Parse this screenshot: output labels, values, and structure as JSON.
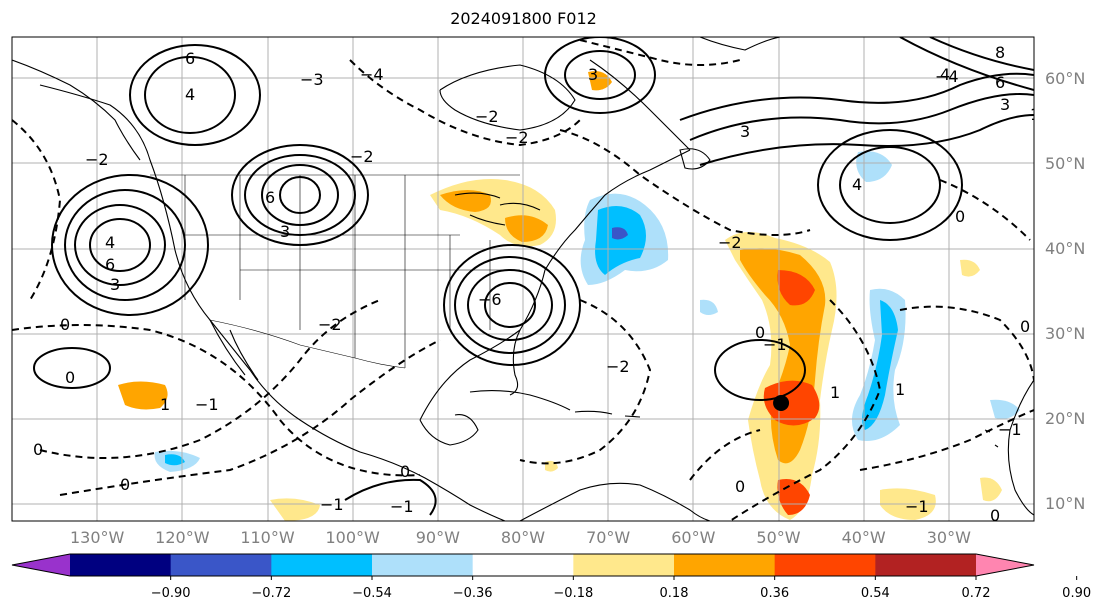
{
  "title": "2024091800 F012",
  "lat_labels": [
    {
      "text": "60°N",
      "lat": 60
    },
    {
      "text": "50°N",
      "lat": 50
    },
    {
      "text": "40°N",
      "lat": 40
    },
    {
      "text": "30°N",
      "lat": 30
    },
    {
      "text": "20°N",
      "lat": 20
    },
    {
      "text": "10°N",
      "lat": 10
    }
  ],
  "lon_labels": [
    {
      "text": "130°W",
      "lon": -130
    },
    {
      "text": "120°W",
      "lon": -120
    },
    {
      "text": "110°W",
      "lon": -110
    },
    {
      "text": "100°W",
      "lon": -100
    },
    {
      "text": "90°W",
      "lon": -90
    },
    {
      "text": "80°W",
      "lon": -80
    },
    {
      "text": "70°W",
      "lon": -70
    },
    {
      "text": "60°W",
      "lon": -60
    },
    {
      "text": "50°W",
      "lon": -50
    },
    {
      "text": "40°W",
      "lon": -40
    },
    {
      "text": "30°W",
      "lon": -30
    }
  ],
  "map_extent": {
    "lon_min": -140,
    "lon_max": -20,
    "lat_min": 8,
    "lat_max": 65
  },
  "colorbar": {
    "colors": [
      "#9932cc",
      "#000080",
      "#3a56c8",
      "#00bfff",
      "#aee0fa",
      "#ffffff",
      "#ffe88c",
      "#ffa500",
      "#ff4500",
      "#b22222",
      "#ff85b0"
    ],
    "tick_labels": [
      "−0.90",
      "−0.72",
      "−0.54",
      "−0.36",
      "−0.18",
      "0.18",
      "0.36",
      "0.54",
      "0.72",
      "0.90"
    ]
  },
  "contour_labels": [
    "6",
    "4",
    "3",
    "0",
    "−2",
    "6",
    "3",
    "−6",
    "−3",
    "−4",
    "−2",
    "4",
    "6",
    "−2",
    "−2",
    "0",
    "3",
    "1",
    "−1",
    "−2",
    "0",
    "0",
    "−2",
    "−1",
    "0",
    "−1",
    "3",
    "4",
    "−4",
    "8",
    "6",
    "3",
    "4",
    "0",
    "−1",
    "0",
    "−2",
    "1",
    "0",
    "1",
    "−1",
    "0",
    "1",
    "−1",
    "0"
  ],
  "storm_marker": {
    "lon": -49.7,
    "lat": 21.9
  }
}
